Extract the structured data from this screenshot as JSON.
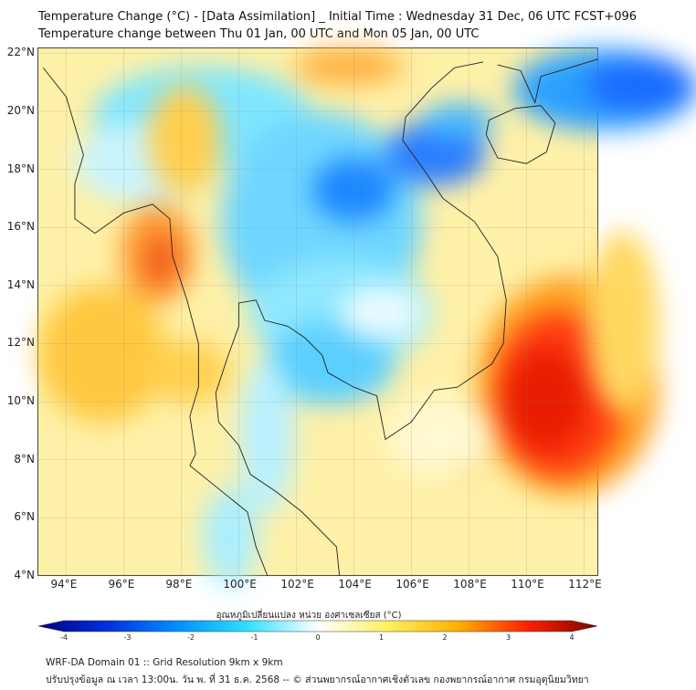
{
  "header": {
    "title": "Temperature Change (°C) - [Data Assimilation] _ Initial Time : Wednesday 31 Dec, 06 UTC FCST+096",
    "subtitle": "Temperature change between Thu 01 Jan, 00 UTC and Mon 05 Jan, 00 UTC"
  },
  "map": {
    "lat_labels": [
      "22°N",
      "20°N",
      "18°N",
      "16°N",
      "14°N",
      "12°N",
      "10°N",
      "8°N",
      "6°N",
      "4°N"
    ],
    "lat_values": [
      22,
      20,
      18,
      16,
      14,
      12,
      10,
      8,
      6,
      4
    ],
    "lon_labels": [
      "94°E",
      "96°E",
      "98°E",
      "100°E",
      "102°E",
      "104°E",
      "106°E",
      "108°E",
      "110°E",
      "112°E"
    ],
    "lon_values": [
      94,
      96,
      98,
      100,
      102,
      104,
      106,
      108,
      110,
      112
    ],
    "extent": {
      "lon": [
        93,
        112.5
      ],
      "lat": [
        4,
        22.2
      ]
    }
  },
  "colorbar": {
    "title": "อุณหภูมิเปลี่ยนแปลง หน่วย องศาเซลเซียส (°C)",
    "ticks": [
      "-4",
      "-3",
      "-2",
      "-1",
      "0",
      "1",
      "2",
      "3",
      "4"
    ],
    "range": [
      -4,
      4
    ],
    "colors": [
      "#000080",
      "#0030e0",
      "#0090ff",
      "#30e0ff",
      "#ffffff",
      "#fff060",
      "#ffb000",
      "#ff2000",
      "#800000"
    ]
  },
  "footer": {
    "line1": "WRF-DA Domain 01 :: Grid Resolution 9km x 9km",
    "line2": "ปรับปรุงข้อมูล ณ เวลา 13:00น. วัน พ. ที่ 31 ธ.ค. 2568 -- © ส่วนพยากรณ์อากาศเชิงตัวเลข กองพยากรณ์อากาศ กรมอุตุนิยมวิทยา"
  }
}
